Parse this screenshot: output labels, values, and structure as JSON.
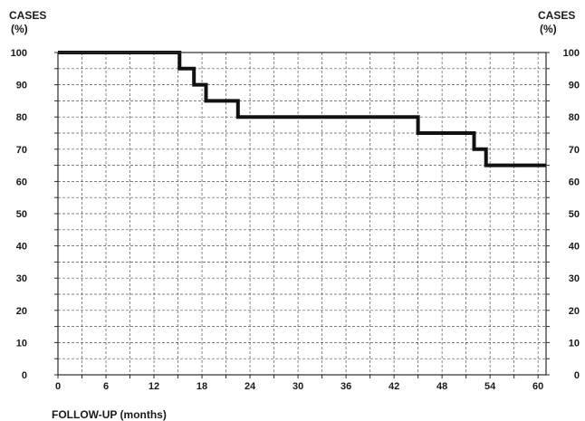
{
  "chart_data": {
    "type": "line",
    "subtype": "step",
    "left_axis_title_line1": "CASES",
    "left_axis_title_line2": "(%)",
    "right_axis_title_line1": "CASES",
    "right_axis_title_line2": "(%)",
    "xlabel": "FOLLOW-UP (months)",
    "xlim": [
      0,
      61
    ],
    "ylim": [
      0,
      100
    ],
    "x_tick_labels": [
      "0",
      "6",
      "12",
      "18",
      "24",
      "30",
      "36",
      "42",
      "48",
      "54",
      "60"
    ],
    "x_ticks": [
      0,
      6,
      12,
      18,
      24,
      30,
      36,
      42,
      48,
      54,
      60
    ],
    "x_minor_gridlines": [
      3,
      9,
      15,
      21,
      27,
      33,
      39,
      45,
      51,
      57
    ],
    "y_tick_labels": [
      "0",
      "10",
      "20",
      "30",
      "40",
      "50",
      "60",
      "70",
      "80",
      "90",
      "100"
    ],
    "y_ticks": [
      0,
      10,
      20,
      30,
      40,
      50,
      60,
      70,
      80,
      90,
      100
    ],
    "y_minor_gridlines": [
      5,
      15,
      25,
      35,
      45,
      55,
      65,
      75,
      85,
      95
    ],
    "grid": true,
    "grid_style": "dashed",
    "line_color": "#111111",
    "series": [
      {
        "x": [
          0,
          15.2,
          15.2,
          17.0,
          17.0,
          18.5,
          18.5,
          22.5,
          22.5,
          45.0,
          45.0,
          52.0,
          52.0,
          53.5,
          53.5,
          61
        ],
        "y": [
          100,
          100,
          95,
          95,
          90,
          90,
          85,
          85,
          80,
          80,
          75,
          75,
          70,
          70,
          65,
          65
        ]
      }
    ]
  }
}
